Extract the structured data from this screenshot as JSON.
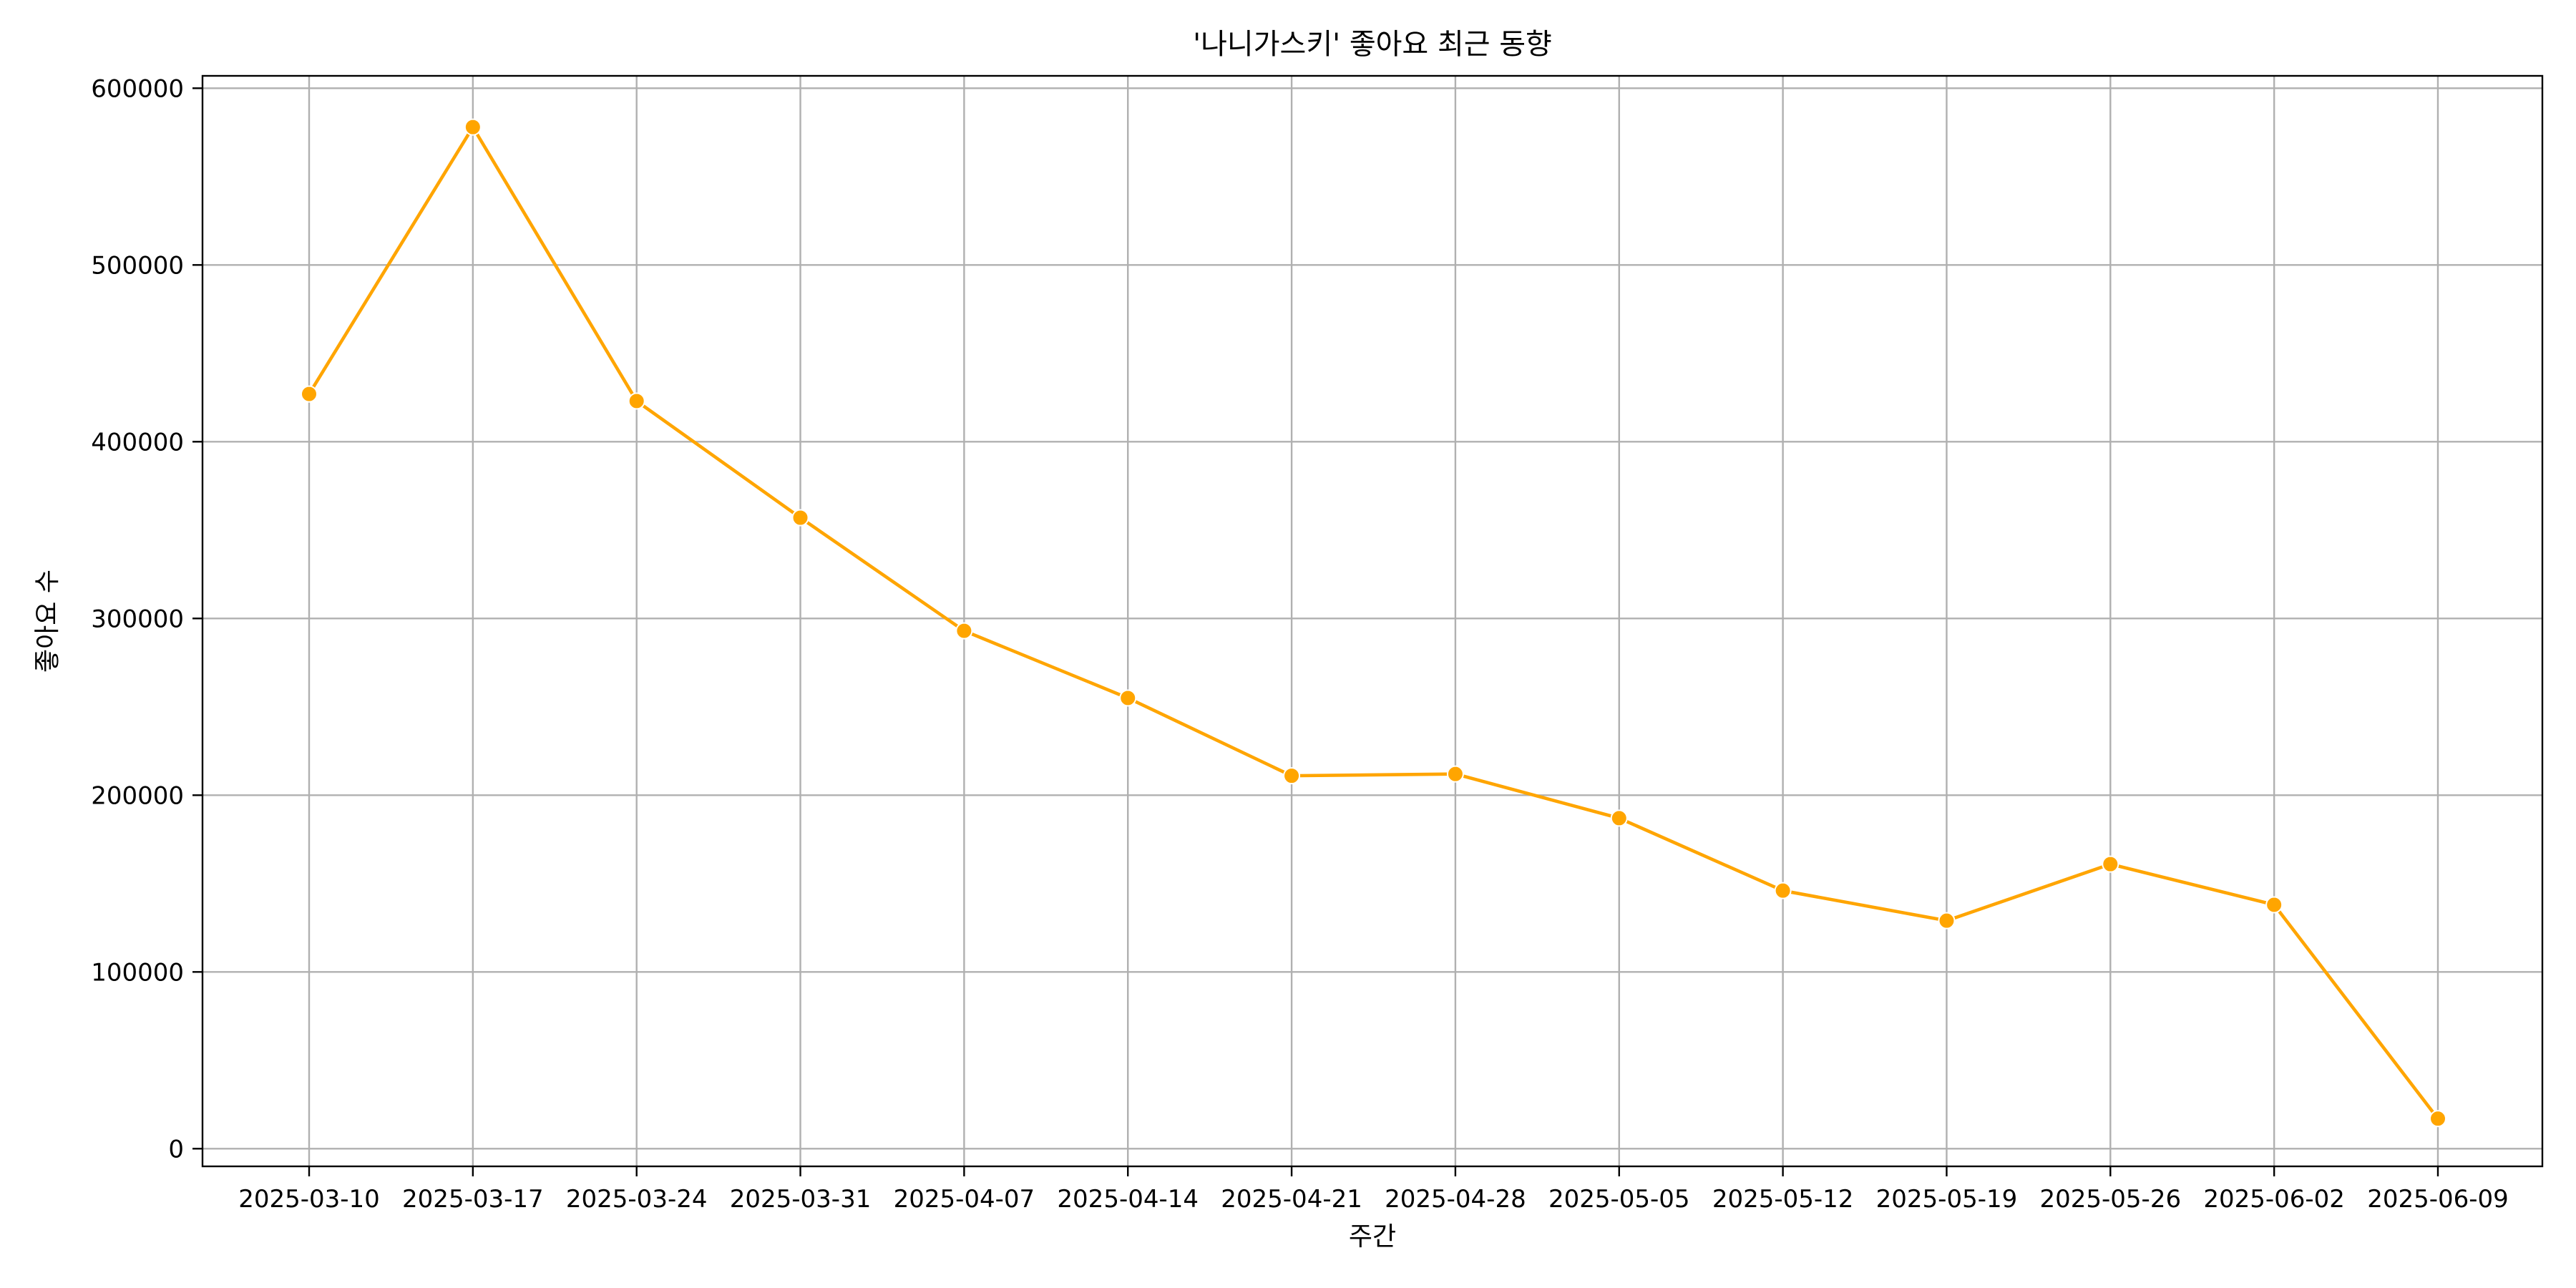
{
  "chart_data": {
    "type": "line",
    "title": "'나니가스키' 좋아요 최근 동향",
    "xlabel": "주간",
    "ylabel": "좋아요 수",
    "x": [
      "2025-03-10",
      "2025-03-17",
      "2025-03-24",
      "2025-03-31",
      "2025-04-07",
      "2025-04-14",
      "2025-04-21",
      "2025-04-28",
      "2025-05-05",
      "2025-05-12",
      "2025-05-19",
      "2025-05-26",
      "2025-06-02",
      "2025-06-09"
    ],
    "series": [
      {
        "values": [
          427000,
          578000,
          423000,
          357000,
          293000,
          255000,
          211000,
          212000,
          187000,
          146000,
          129000,
          161000,
          138000,
          17000
        ],
        "color": "#ffa500",
        "marker": "circle"
      }
    ],
    "ylim": [
      -10000,
      607000
    ],
    "yticks": [
      0,
      100000,
      200000,
      300000,
      400000,
      500000,
      600000
    ],
    "grid": true,
    "legend": "none"
  }
}
